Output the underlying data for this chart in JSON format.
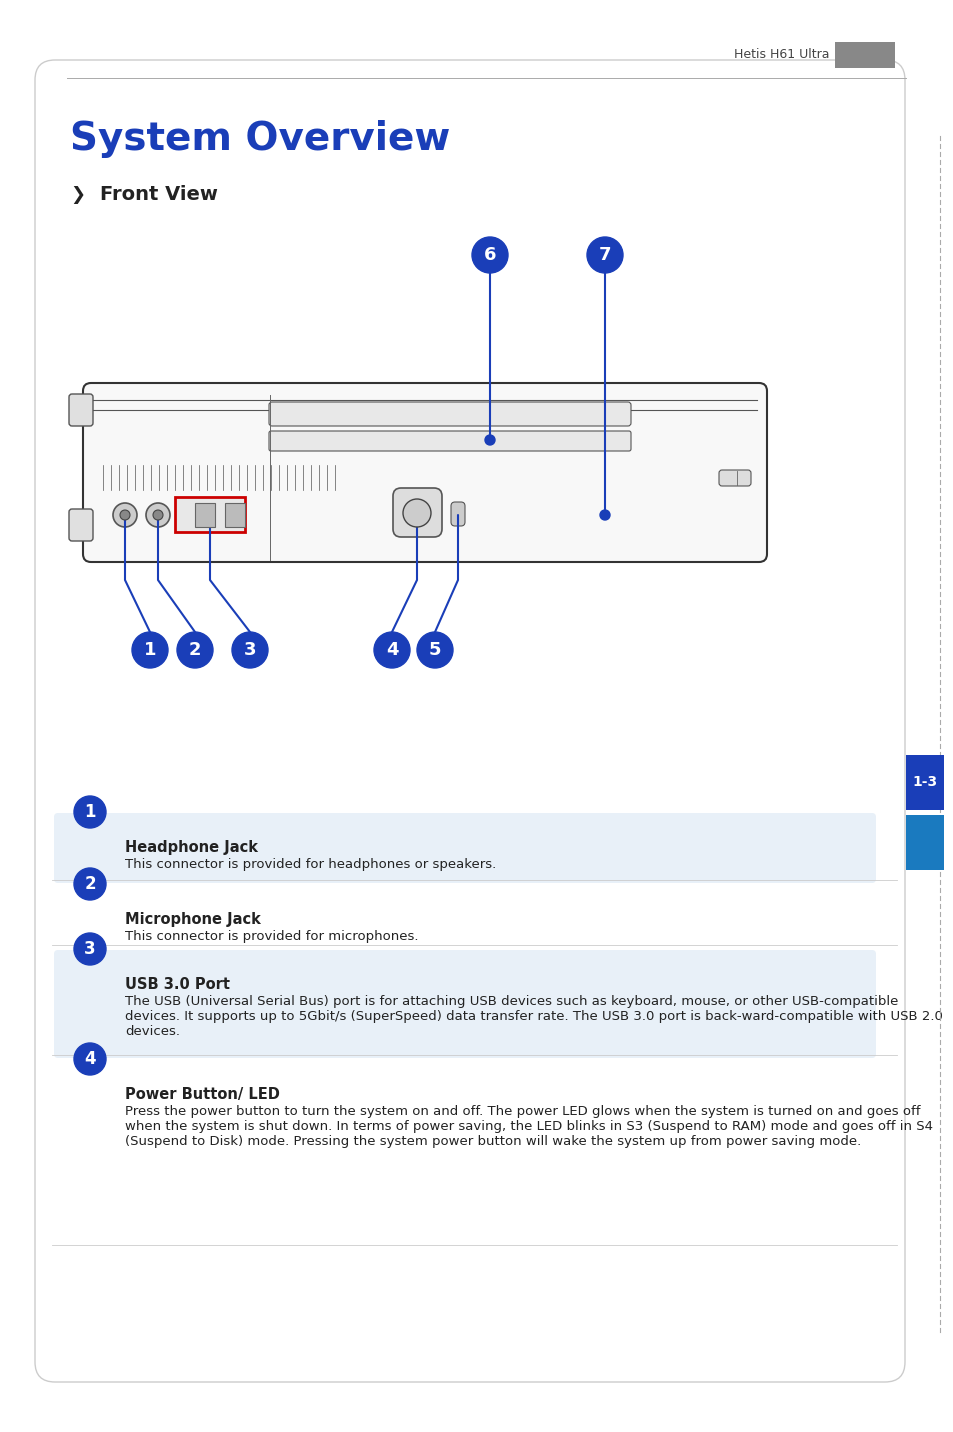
{
  "page_title": "System Overview",
  "section_title": "Front View",
  "header_text": "Hetis H61 Ultra",
  "page_number": "1-3",
  "bg_color": "#ffffff",
  "title_color": "#1a3eb8",
  "section_title_color": "#222222",
  "body_bg": "#ffffff",
  "items": [
    {
      "num": "1",
      "title": "Headphone Jack",
      "body": "This connector is provided for headphones or speakers.",
      "shaded": true
    },
    {
      "num": "2",
      "title": "Microphone Jack",
      "body": "This connector is provided for microphones.",
      "shaded": false
    },
    {
      "num": "3",
      "title": "USB 3.0 Port",
      "body": "The USB (Universal Serial Bus) port is for attaching USB devices such as keyboard, mouse, or other USB-compatible devices. It supports up to 5Gbit/s (SuperSpeed) data transfer rate. The USB 3.0 port is back-ward-compatible with USB 2.0 devices.",
      "shaded": true
    },
    {
      "num": "4",
      "title": "Power Button/ LED",
      "body": "Press the power button to turn the system on and off. The power LED glows when the system is turned on and goes off when the system is shut down. In terms of power saving, the LED blinks in S3 (Suspend to RAM) mode and goes off in S4 (Suspend to Disk) mode. Pressing the system power button will wake the system up from power saving mode.",
      "shaded": false
    }
  ],
  "bubble_color": "#1a3eb8",
  "bubble_text_color": "#ffffff",
  "shaded_row_color": "#e8f0f8",
  "separator_color": "#cccccc",
  "right_tab_color": "#1a7abf",
  "right_tab_dark_color": "#1a3eb8"
}
